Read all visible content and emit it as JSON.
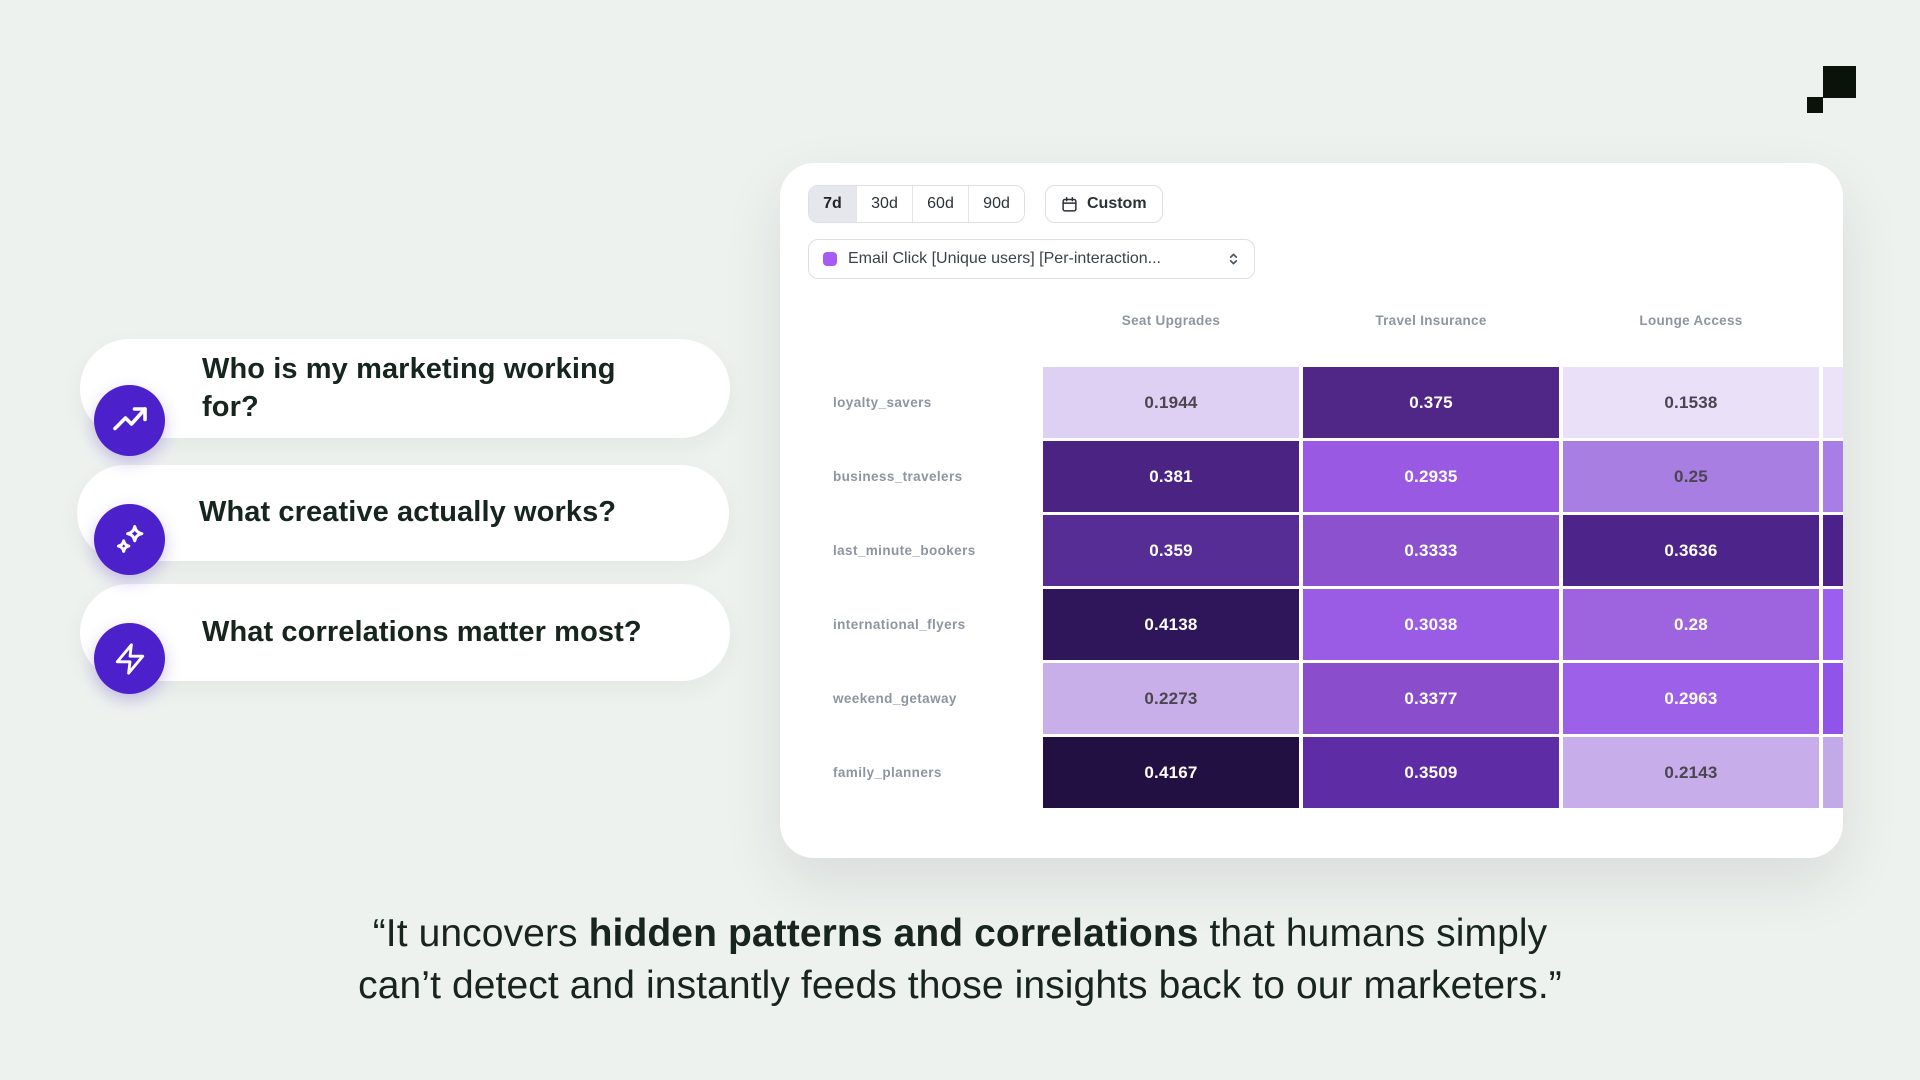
{
  "page": {
    "background_color": "#eef2ef",
    "accent_purple": "#4c20ca",
    "logo_color": "#0a130a"
  },
  "questions": [
    {
      "icon": "trend-up-icon",
      "label": "Who is my marketing working for?"
    },
    {
      "icon": "sparkles-icon",
      "label": "What creative actually works?"
    },
    {
      "icon": "bolt-icon",
      "label": "What correlations matter most?"
    }
  ],
  "dashboard": {
    "time_ranges": [
      {
        "label": "7d",
        "selected": true
      },
      {
        "label": "30d",
        "selected": false
      },
      {
        "label": "60d",
        "selected": false
      },
      {
        "label": "90d",
        "selected": false
      }
    ],
    "custom_button": {
      "label": "Custom",
      "icon": "calendar-icon"
    },
    "metric_dropdown": {
      "label": "Email Click [Unique users] [Per-interaction...",
      "swatch_color": "#a55cf5",
      "icon": "updown-chevron-icon"
    },
    "heatmap": {
      "columns": [
        "Seat Upgrades",
        "Travel Insurance",
        "Lounge Access"
      ],
      "rows": [
        "loyalty_savers",
        "business_travelers",
        "last_minute_bookers",
        "international_flyers",
        "weekend_getaway",
        "family_planners"
      ],
      "display_values": [
        [
          "0.1944",
          "0.375",
          "0.1538"
        ],
        [
          "0.381",
          "0.2935",
          "0.25"
        ],
        [
          "0.359",
          "0.3333",
          "0.3636"
        ],
        [
          "0.4138",
          "0.3038",
          "0.28"
        ],
        [
          "0.2273",
          "0.3377",
          "0.2963"
        ],
        [
          "0.4167",
          "0.3509",
          "0.2143"
        ]
      ],
      "cell_colors": [
        [
          "#ded0f2",
          "#502687",
          "#eae0f7"
        ],
        [
          "#4a2383",
          "#9959e3",
          "#a97ee2"
        ],
        [
          "#562c95",
          "#8b51cf",
          "#4d2489"
        ],
        [
          "#2f1559",
          "#9a5ce5",
          "#9e64e0"
        ],
        [
          "#c9afe9",
          "#8a4ecd",
          "#9c60e9"
        ],
        [
          "#221042",
          "#5e2ca4",
          "#c7ade9"
        ]
      ],
      "clipped_column_colors": [
        "#ece3f8",
        "#a87ee6",
        "#4c2189",
        "#9b5ef0",
        "#9154ea",
        "#c2a9e7"
      ],
      "dark_text_color": "#4a4550",
      "light_text_color": "#ffffff"
    }
  },
  "chart_data": {
    "type": "heatmap",
    "title": "Email Click [Unique users] [Per-interaction...",
    "x_categories": [
      "Seat Upgrades",
      "Travel Insurance",
      "Lounge Access"
    ],
    "y_categories": [
      "loyalty_savers",
      "business_travelers",
      "last_minute_bookers",
      "international_flyers",
      "weekend_getaway",
      "family_planners"
    ],
    "values": [
      [
        0.1944,
        0.375,
        0.1538
      ],
      [
        0.381,
        0.2935,
        0.25
      ],
      [
        0.359,
        0.3333,
        0.3636
      ],
      [
        0.4138,
        0.3038,
        0.28
      ],
      [
        0.2273,
        0.3377,
        0.2963
      ],
      [
        0.4167,
        0.3509,
        0.2143
      ]
    ],
    "colormap": "light-purple (low) to dark-purple (high)",
    "time_range_selected": "7d",
    "time_range_options": [
      "7d",
      "30d",
      "60d",
      "90d",
      "Custom"
    ]
  },
  "quote": {
    "line1_pre": "“It uncovers ",
    "line1_bold": "hidden patterns and correlations",
    "line1_post": " that humans simply",
    "line2": "can’t detect and instantly feeds those insights back to our marketers.”"
  }
}
